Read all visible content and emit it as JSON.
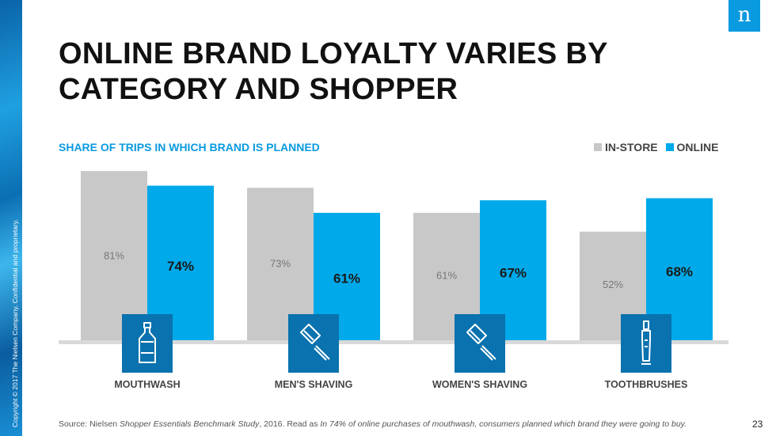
{
  "copyright": "Copyright © 2017 The Nielsen Company. Confidential and proprietary.",
  "logo_letter": "n",
  "title": "ONLINE BRAND LOYALTY VARIES BY CATEGORY AND SHOPPER",
  "page_number": "23",
  "source": {
    "prefix": "Source: Nielsen ",
    "study": "Shopper Essentials Benchmark Study",
    "middle": ", 2016. Read as ",
    "example": "In 74% of online purchases of mouthwash, consumers planned which brand they were going to buy."
  },
  "colors": {
    "in_store": "#c8c8c8",
    "online": "#00a9e9",
    "icon_box": "#0a72ae",
    "accent": "#0a9ae0"
  },
  "chart_data": {
    "type": "bar",
    "title": "SHARE OF TRIPS IN WHICH BRAND IS PLANNED",
    "categories": [
      "MOUTHWASH",
      "MEN'S SHAVING",
      "WOMEN'S SHAVING",
      "TOOTHBRUSHES"
    ],
    "category_icons": [
      "bottle-icon",
      "razor-icon",
      "razor-icon",
      "toothbrush-icon"
    ],
    "series": [
      {
        "name": "IN-STORE",
        "values": [
          81,
          73,
          61,
          52
        ],
        "labels": [
          "81%",
          "73%",
          "61%",
          "52%"
        ]
      },
      {
        "name": "ONLINE",
        "values": [
          74,
          61,
          67,
          68
        ],
        "labels": [
          "74%",
          "61%",
          "67%",
          "68%"
        ]
      }
    ],
    "legend_position": "top-right",
    "ylim": [
      0,
      100
    ],
    "grid": false
  }
}
